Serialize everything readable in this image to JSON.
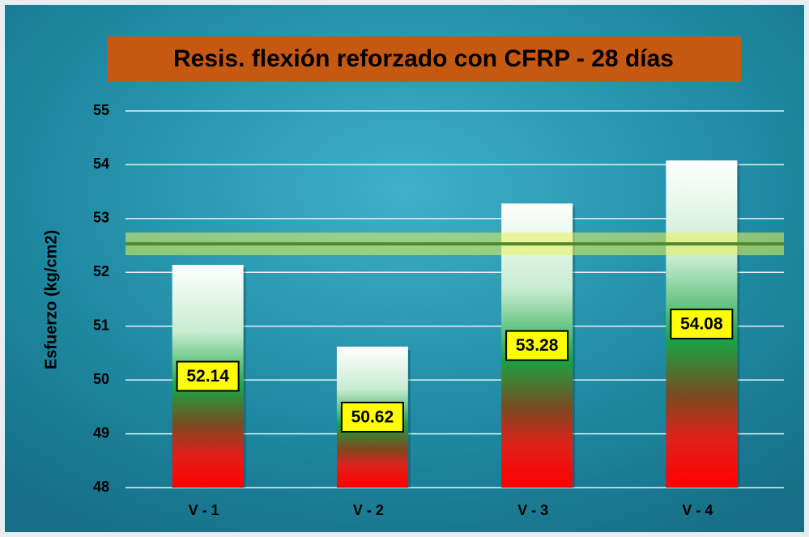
{
  "chart_data": {
    "type": "bar",
    "title": "Resis. flexión reforzado con CFRP - 28 días",
    "y_label": "Esfuerzo (kg/cm2)",
    "categories": [
      "V - 1",
      "V - 2",
      "V - 3",
      "V - 4"
    ],
    "values": [
      52.14,
      50.62,
      53.28,
      54.08
    ],
    "ylim": [
      48,
      55
    ],
    "yticks": [
      48,
      49,
      50,
      51,
      52,
      53,
      54,
      55
    ],
    "grid": true,
    "mean_line": 52.53,
    "title_color": "#c65911",
    "label_color": "#ffff00"
  }
}
